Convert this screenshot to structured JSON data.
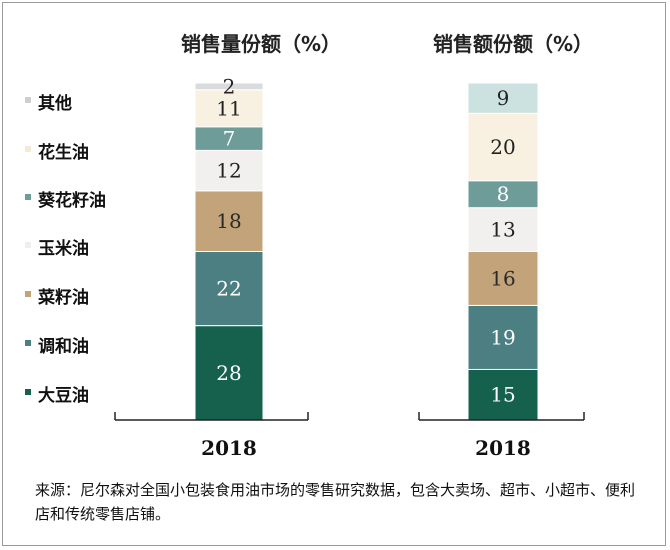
{
  "chart_data": [
    {
      "type": "bar",
      "stacked": true,
      "title": "销售量份额（%）",
      "categories": [
        "2018"
      ],
      "series": [
        {
          "name": "大豆油",
          "values": [
            28
          ]
        },
        {
          "name": "调和油",
          "values": [
            22
          ]
        },
        {
          "name": "菜籽油",
          "values": [
            18
          ]
        },
        {
          "name": "玉米油",
          "values": [
            12
          ]
        },
        {
          "name": "葵花籽油",
          "values": [
            7
          ]
        },
        {
          "name": "花生油",
          "values": [
            11
          ]
        },
        {
          "name": "其他",
          "values": [
            2
          ]
        }
      ],
      "ylim": [
        0,
        100
      ]
    },
    {
      "type": "bar",
      "stacked": true,
      "title": "销售额份额（%）",
      "categories": [
        "2018"
      ],
      "series": [
        {
          "name": "大豆油",
          "values": [
            15
          ]
        },
        {
          "name": "调和油",
          "values": [
            19
          ]
        },
        {
          "name": "菜籽油",
          "values": [
            16
          ]
        },
        {
          "name": "玉米油",
          "values": [
            13
          ]
        },
        {
          "name": "葵花籽油",
          "values": [
            8
          ]
        },
        {
          "name": "花生油",
          "values": [
            20
          ]
        },
        {
          "name": "其他",
          "values": [
            9
          ]
        }
      ],
      "ylim": [
        0,
        100
      ]
    }
  ],
  "legend": {
    "placement": "left",
    "items": [
      "其他",
      "花生油",
      "葵花籽油",
      "玉米油",
      "菜籽油",
      "调和油",
      "大豆油"
    ]
  },
  "colors": {
    "大豆油": "#15614e",
    "调和油": "#4c7f82",
    "菜籽油": "#c3a47a",
    "玉米油": "#f1f0ee",
    "葵花籽油": "#6e9c98",
    "花生油": "#f8f0e0",
    "其他": "#d8dcdd",
    "其他_right": "#cbe2e0"
  },
  "source_note": "来源：尼尔森对全国小包装食用油市场的零售研究数据，包含大卖场、超市、小超市、便利店和传统零售店铺。"
}
